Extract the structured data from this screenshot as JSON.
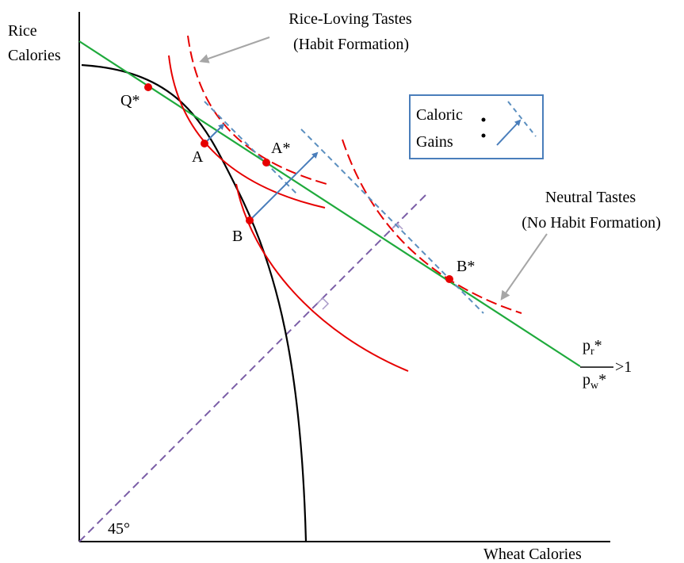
{
  "axes": {
    "y_label_line1": "Rice",
    "y_label_line2": "Calories",
    "x_label": "Wheat Calories",
    "angle_label": "45°"
  },
  "points": {
    "q_star": "Q*",
    "a": "A",
    "a_star": "A*",
    "b": "B",
    "b_star": "B*"
  },
  "annotations": {
    "rice_loving_line1": "Rice-Loving Tastes",
    "rice_loving_line2": "(Habit Formation)",
    "neutral_line1": "Neutral Tastes",
    "neutral_line2": "(No Habit Formation)"
  },
  "price_ratio": {
    "numerator": "p",
    "numerator_sub": "r",
    "numerator_sup": "*",
    "denominator": "p",
    "denominator_sub": "w",
    "denominator_sup": "*",
    "comparison": ">1"
  },
  "legend": {
    "line1": "Caloric",
    "line2": "Gains"
  },
  "colors": {
    "frontier": "#000000",
    "indifference": "#e60000",
    "price_line": "#1faa3c",
    "tangent_dashed": "#5b8fbf",
    "gain_arrow": "#4a7ebb",
    "diagonal_45": "#7b5ea7",
    "callout_arrow": "#a6a6a6",
    "point": "#e60000",
    "legend_border": "#4a7ebb"
  }
}
